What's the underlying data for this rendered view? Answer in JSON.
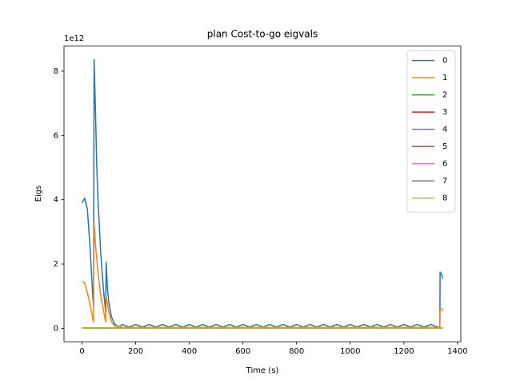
{
  "chart_data": {
    "type": "line",
    "title": "plan Cost-to-go eigvals",
    "x_label": "Time (s)",
    "y_label": "Eigs",
    "y_offset_label": "1e12",
    "xlim": [
      -67.25,
      1412.25
    ],
    "ylim": [
      -0.418,
      8.78
    ],
    "xticks": [
      0,
      200,
      400,
      600,
      800,
      1000,
      1200,
      1400
    ],
    "yticks": [
      0,
      2,
      4,
      6,
      8
    ],
    "grid": false,
    "legend": "upper right",
    "series": [
      {
        "name": "0",
        "color": "#1f77b4",
        "x": [
          0,
          10,
          20,
          30,
          40,
          43,
          45,
          50,
          55,
          60,
          70,
          80,
          88,
          90,
          95,
          100,
          110,
          120,
          130,
          140,
          150,
          175,
          200,
          225,
          250,
          275,
          300,
          325,
          350,
          375,
          400,
          425,
          450,
          475,
          500,
          525,
          550,
          575,
          600,
          625,
          650,
          675,
          700,
          725,
          750,
          775,
          800,
          825,
          850,
          875,
          900,
          925,
          950,
          975,
          1000,
          1025,
          1050,
          1075,
          1100,
          1125,
          1150,
          1175,
          1200,
          1225,
          1250,
          1275,
          1300,
          1325,
          1330,
          1334,
          1335,
          1340,
          1345
        ],
        "values": [
          3.9,
          4.05,
          3.7,
          2.5,
          1.0,
          0.7,
          8.36,
          6.8,
          5.0,
          3.9,
          2.3,
          1.2,
          0.5,
          2.05,
          1.2,
          0.8,
          0.35,
          0.15,
          0.08,
          0.05,
          0.12,
          0.04,
          0.12,
          0.04,
          0.12,
          0.04,
          0.12,
          0.04,
          0.12,
          0.04,
          0.12,
          0.04,
          0.12,
          0.04,
          0.12,
          0.04,
          0.12,
          0.04,
          0.12,
          0.04,
          0.12,
          0.04,
          0.12,
          0.04,
          0.12,
          0.04,
          0.12,
          0.04,
          0.12,
          0.04,
          0.12,
          0.04,
          0.12,
          0.04,
          0.12,
          0.04,
          0.12,
          0.04,
          0.12,
          0.04,
          0.12,
          0.04,
          0.12,
          0.04,
          0.12,
          0.04,
          0.12,
          0.04,
          0.04,
          0.04,
          1.75,
          1.7,
          1.55
        ]
      },
      {
        "name": "1",
        "color": "#ff7f0e",
        "x": [
          0,
          5,
          10,
          20,
          30,
          40,
          43,
          45,
          50,
          60,
          70,
          80,
          88,
          90,
          95,
          100,
          110,
          120,
          150,
          1330,
          1334,
          1335,
          1340,
          1345
        ],
        "values": [
          1.45,
          1.45,
          1.4,
          1.1,
          0.75,
          0.3,
          0.2,
          3.3,
          2.6,
          1.7,
          1.0,
          0.55,
          0.2,
          1.0,
          0.75,
          0.5,
          0.2,
          0.08,
          0.03,
          0.03,
          0.03,
          0.6,
          0.62,
          0.55
        ]
      },
      {
        "name": "2",
        "color": "#2ca02c",
        "x": [
          0,
          1345
        ],
        "values": [
          0.01,
          0.01
        ]
      },
      {
        "name": "3",
        "color": "#d62728",
        "x": [
          0,
          1345
        ],
        "values": [
          0.01,
          0.01
        ]
      },
      {
        "name": "4",
        "color": "#9467bd",
        "x": [
          0,
          1345
        ],
        "values": [
          0.01,
          0.01
        ]
      },
      {
        "name": "5",
        "color": "#8c564b",
        "x": [
          0,
          1345
        ],
        "values": [
          0.01,
          0.01
        ]
      },
      {
        "name": "6",
        "color": "#e377c2",
        "x": [
          0,
          1345
        ],
        "values": [
          0.01,
          0.01
        ]
      },
      {
        "name": "7",
        "color": "#7f7f7f",
        "x": [
          0,
          1345
        ],
        "values": [
          0.01,
          0.01
        ]
      },
      {
        "name": "8",
        "color": "#bcbd22",
        "x": [
          0,
          1345
        ],
        "values": [
          0.01,
          0.01
        ]
      }
    ]
  }
}
